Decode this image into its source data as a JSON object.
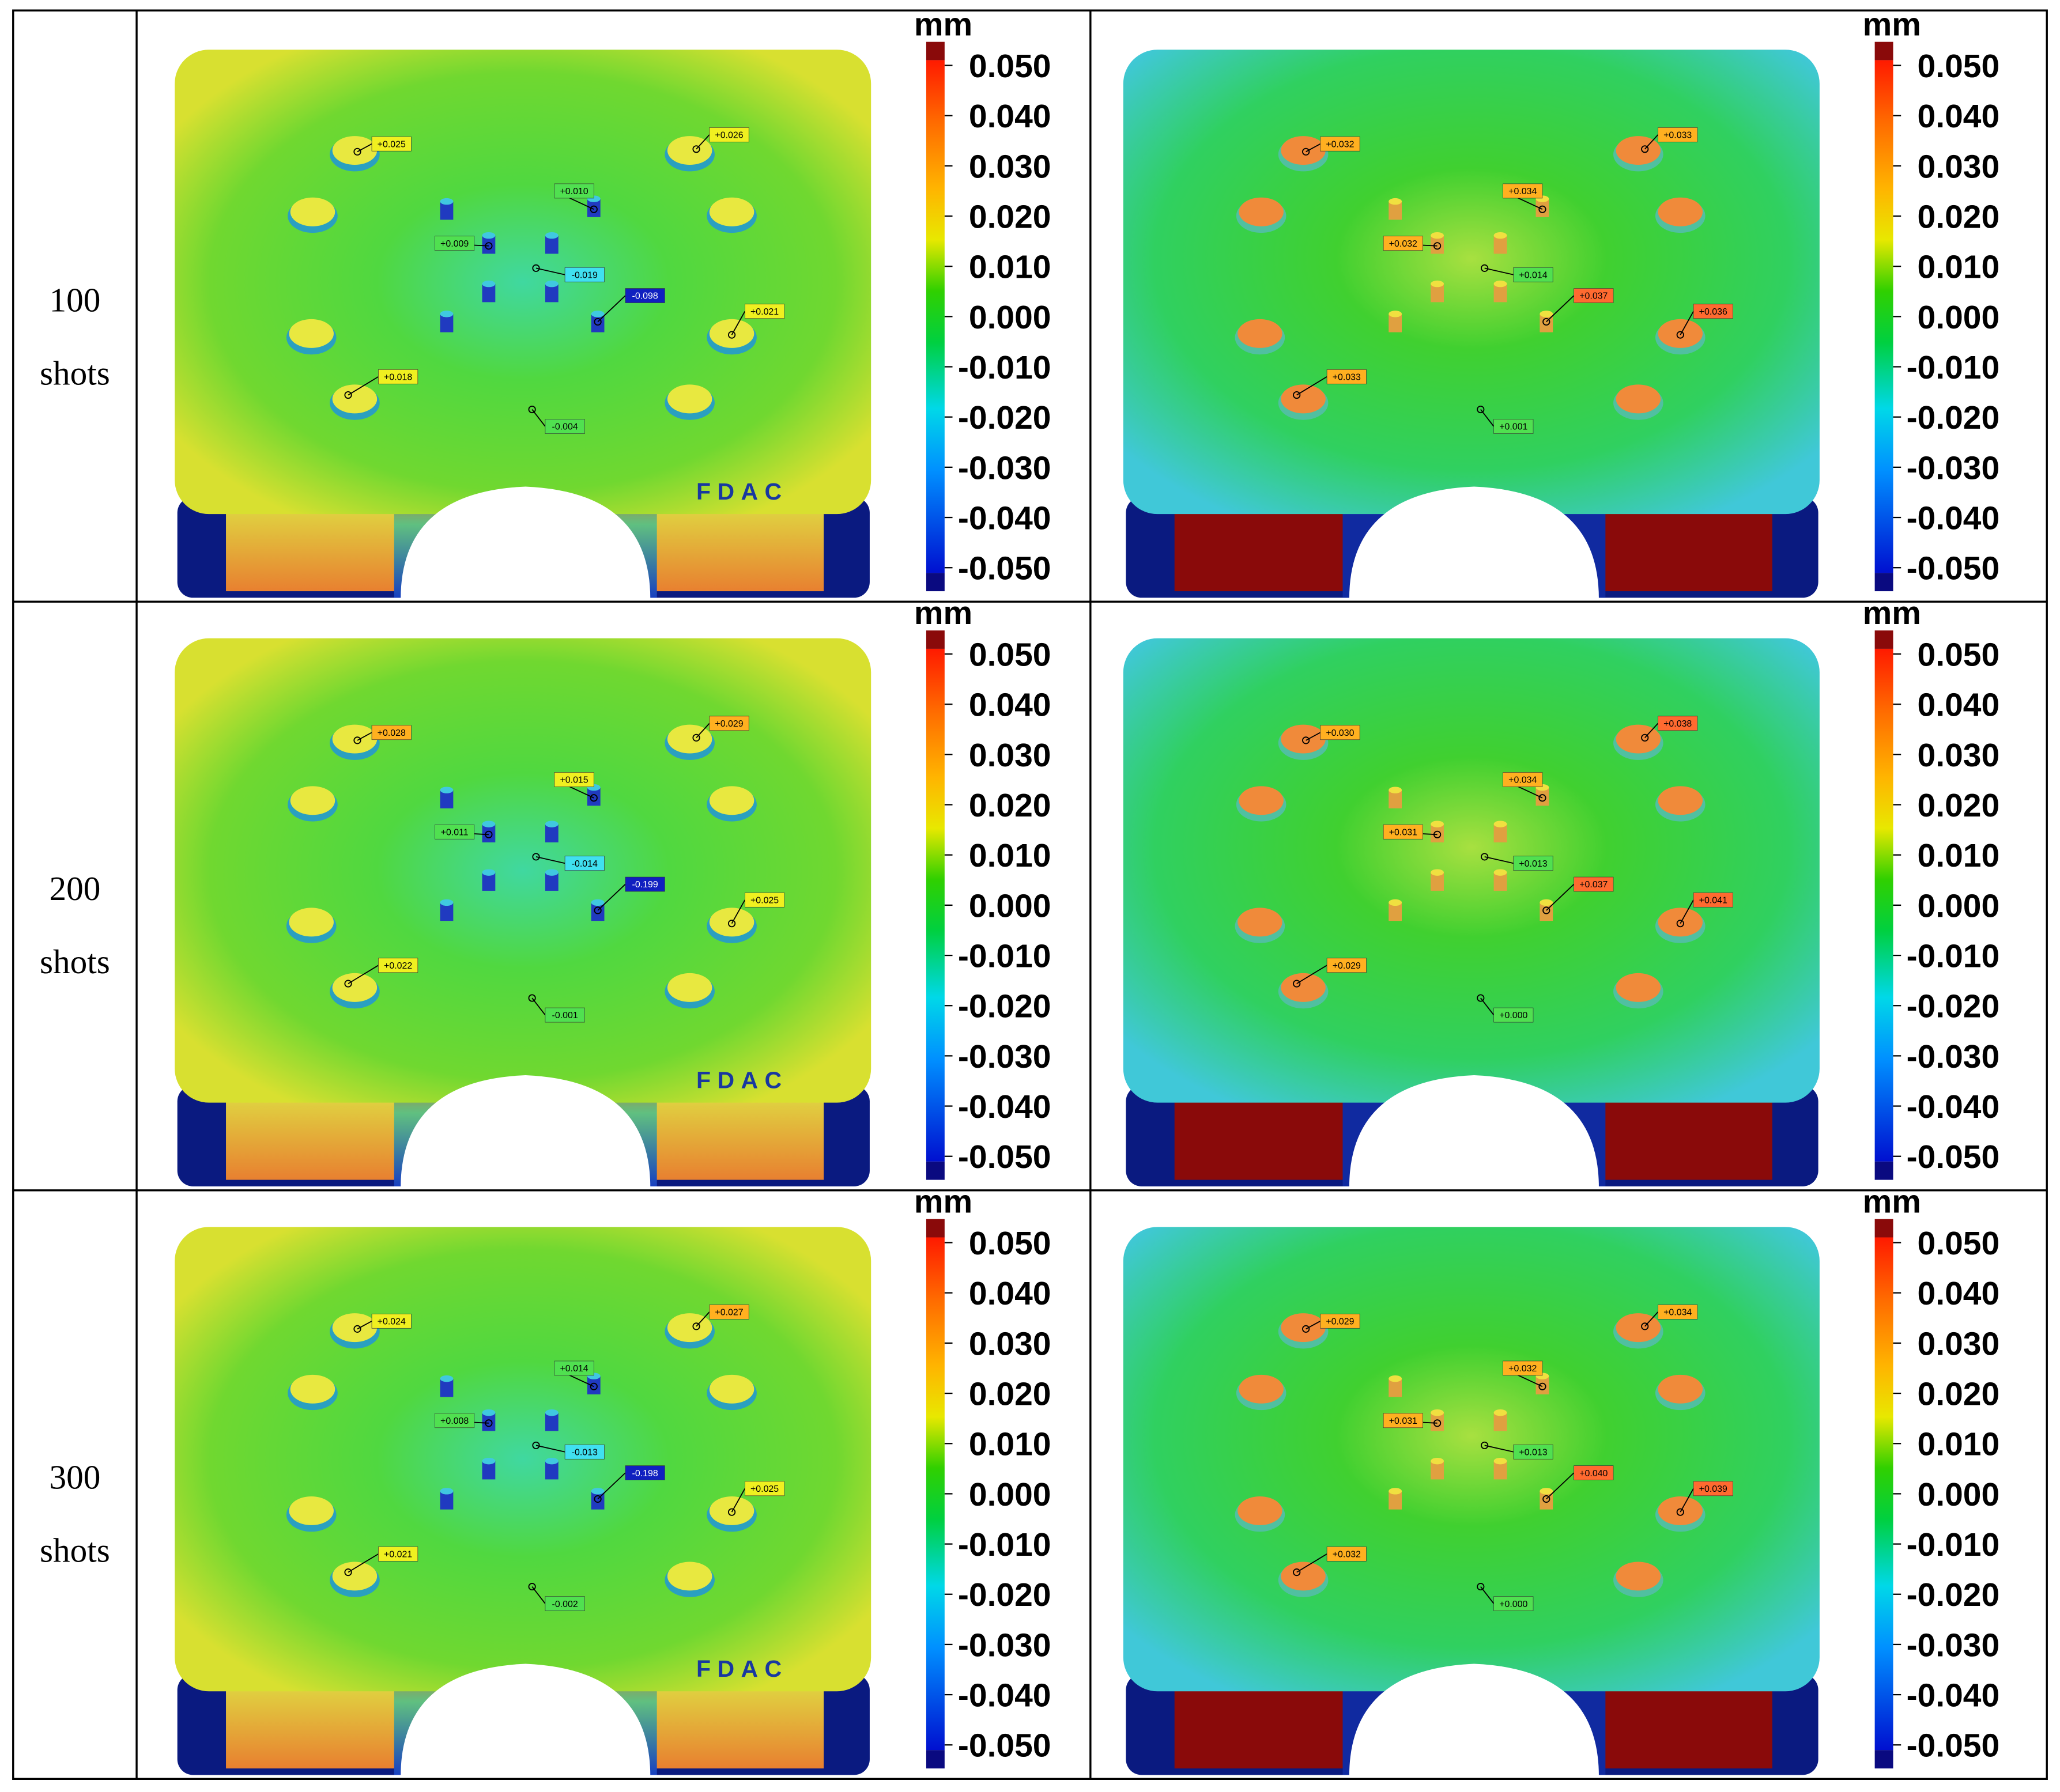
{
  "colorbar": {
    "unit": "mm",
    "ticks": [
      "0.050",
      "0.040",
      "0.030",
      "0.020",
      "0.010",
      "0.000",
      "-0.010",
      "-0.020",
      "-0.030",
      "-0.040",
      "-0.050"
    ]
  },
  "rows": [
    {
      "label": [
        "100",
        "shots"
      ],
      "panels": [
        {
          "marking": "FDAC",
          "annotations": [
            "+0.025",
            "+0.026",
            "+0.010",
            "+0.009",
            "-0.019",
            "-0.098",
            "+0.021",
            "+0.018",
            "-0.004"
          ]
        },
        {
          "annotations": [
            "+0.032",
            "+0.033",
            "+0.034",
            "+0.032",
            "+0.014",
            "+0.037",
            "+0.036",
            "+0.033",
            "+0.001"
          ]
        }
      ]
    },
    {
      "label": [
        "200",
        "shots"
      ],
      "panels": [
        {
          "marking": "FDAC",
          "annotations": [
            "+0.028",
            "+0.029",
            "+0.015",
            "+0.011",
            "-0.014",
            "-0.199",
            "+0.025",
            "+0.022",
            "-0.001"
          ]
        },
        {
          "annotations": [
            "+0.030",
            "+0.038",
            "+0.034",
            "+0.031",
            "+0.013",
            "+0.037",
            "+0.041",
            "+0.029",
            "+0.000"
          ]
        }
      ]
    },
    {
      "label": [
        "300",
        "shots"
      ],
      "panels": [
        {
          "marking": "FDAC",
          "annotations": [
            "+0.024",
            "+0.027",
            "+0.014",
            "+0.008",
            "-0.013",
            "-0.198",
            "+0.025",
            "+0.021",
            "-0.002"
          ]
        },
        {
          "annotations": [
            "+0.029",
            "+0.034",
            "+0.032",
            "+0.031",
            "+0.013",
            "+0.040",
            "+0.039",
            "+0.032",
            "+0.000"
          ]
        }
      ]
    }
  ]
}
